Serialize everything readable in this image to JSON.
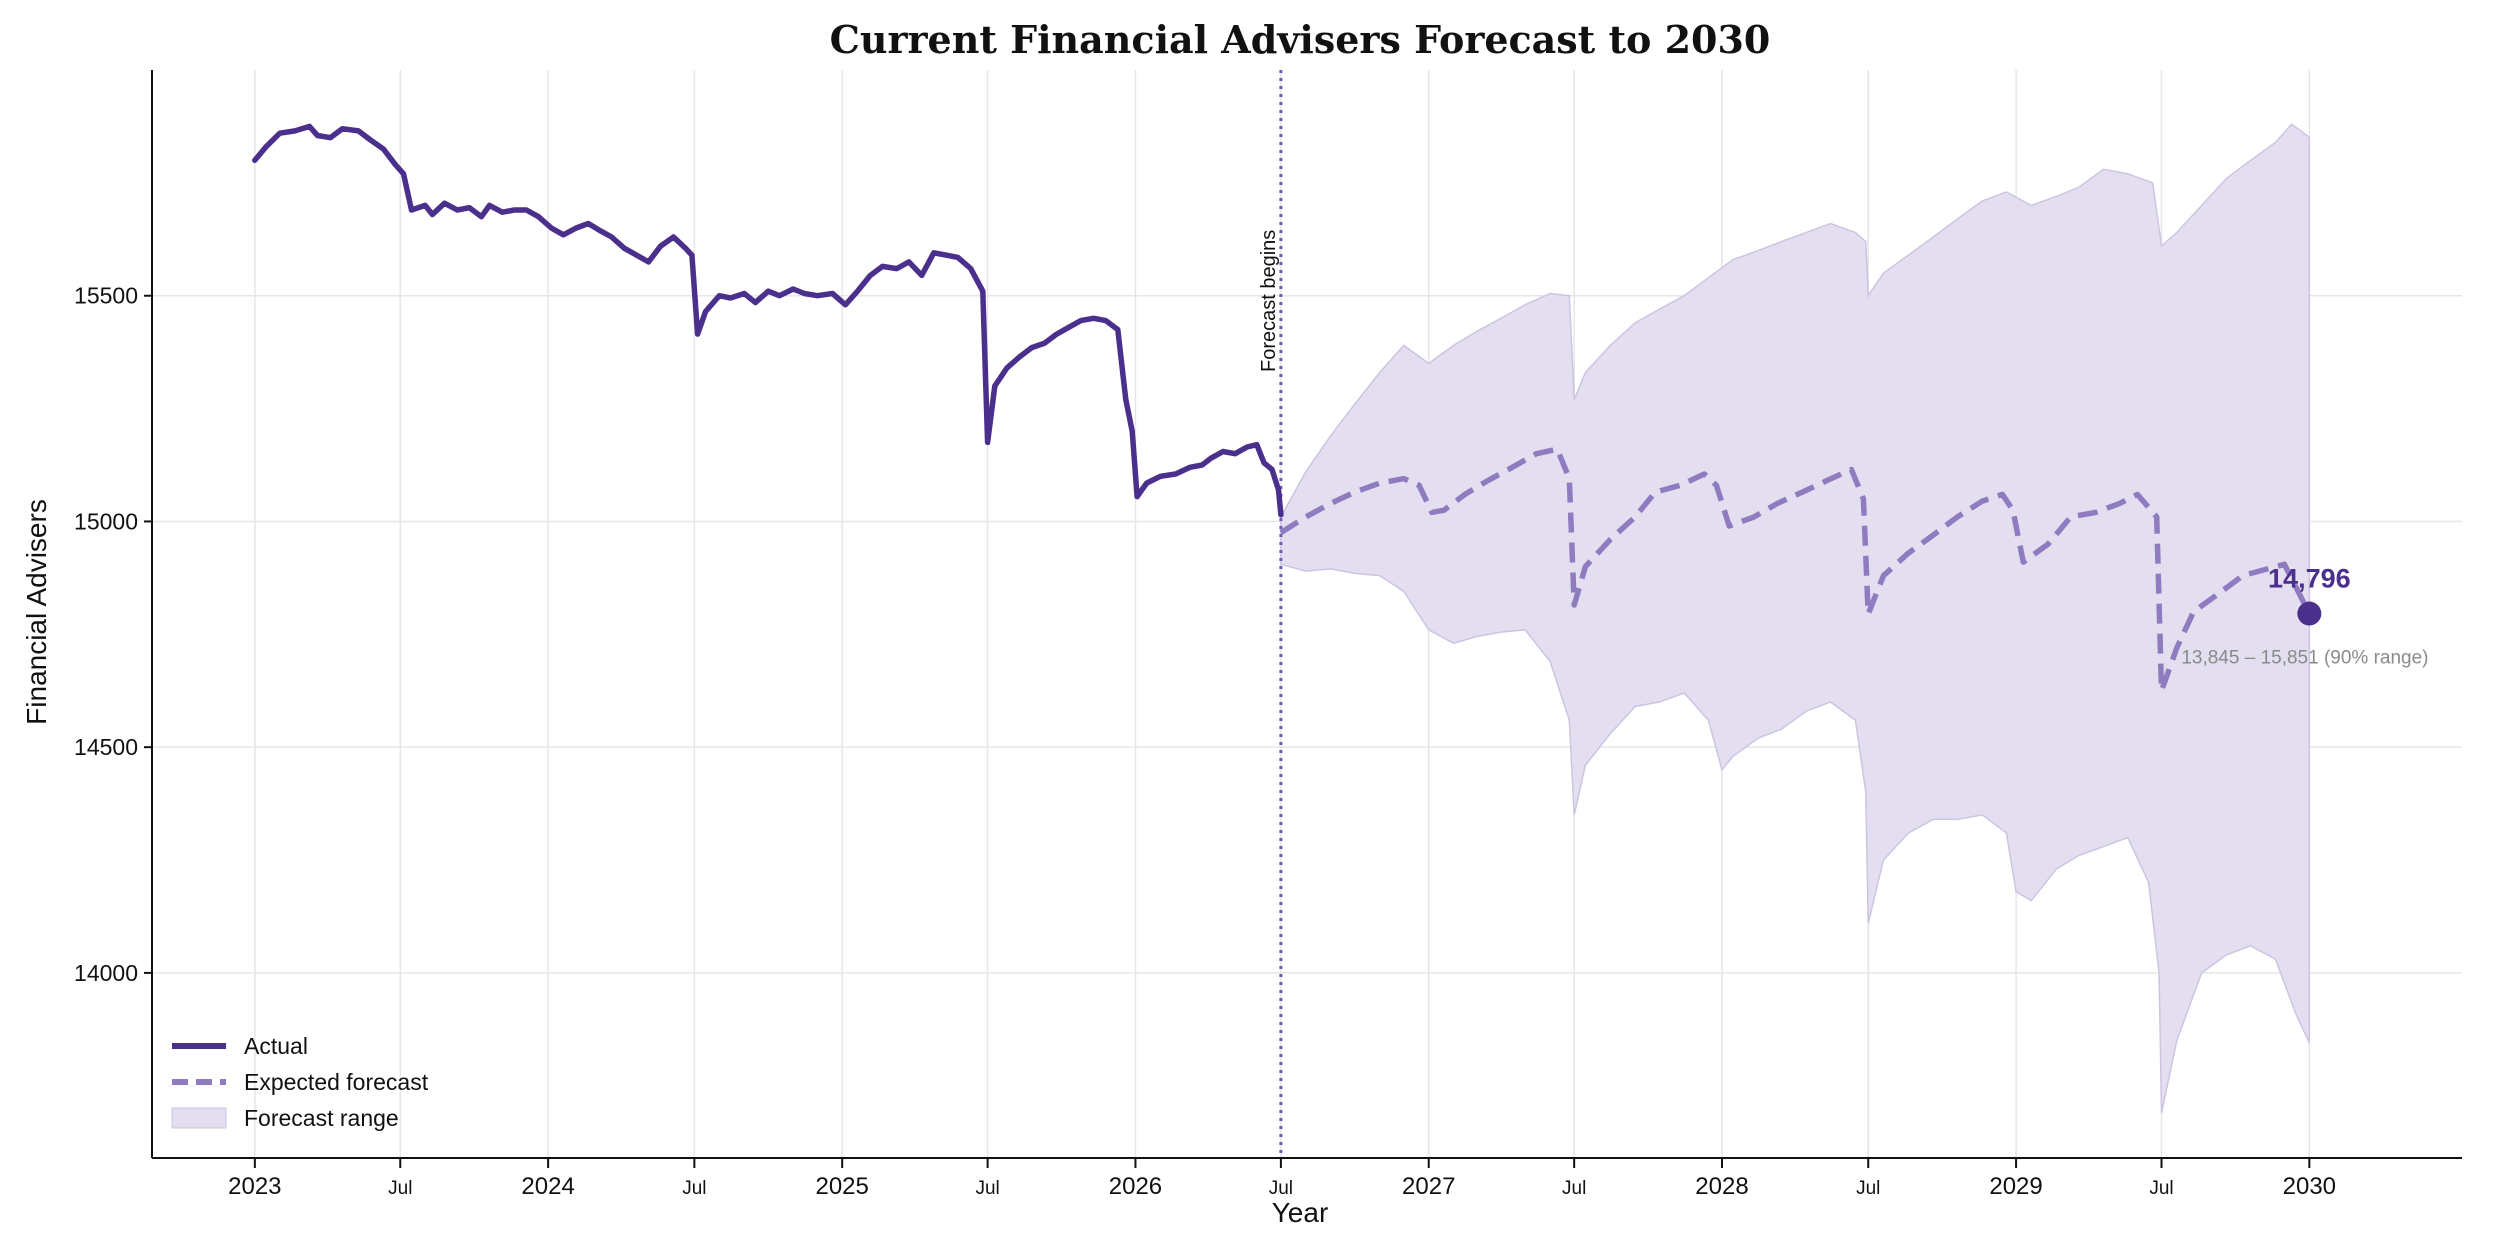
{
  "chart_data": {
    "type": "line",
    "title": "Current Financial Advisers Forecast to 2030",
    "xlabel": "Year",
    "ylabel": "Financial Advisers",
    "xlim": [
      "2022-08-26",
      "2030-07-10"
    ],
    "ylim": [
      13590,
      16000
    ],
    "y_ticks": [
      14000,
      14500,
      15000,
      15500
    ],
    "x_ticks": [
      {
        "date": "2023-01-01",
        "label": "2023",
        "major": true
      },
      {
        "date": "2023-07-01",
        "label": "Jul",
        "major": false
      },
      {
        "date": "2024-01-01",
        "label": "2024",
        "major": true
      },
      {
        "date": "2024-07-01",
        "label": "Jul",
        "major": false
      },
      {
        "date": "2025-01-01",
        "label": "2025",
        "major": true
      },
      {
        "date": "2025-07-01",
        "label": "Jul",
        "major": false
      },
      {
        "date": "2026-01-01",
        "label": "2026",
        "major": true
      },
      {
        "date": "2026-07-01",
        "label": "Jul",
        "major": false
      },
      {
        "date": "2027-01-01",
        "label": "2027",
        "major": true
      },
      {
        "date": "2027-07-01",
        "label": "Jul",
        "major": false
      },
      {
        "date": "2028-01-01",
        "label": "2028",
        "major": true
      },
      {
        "date": "2028-07-01",
        "label": "Jul",
        "major": false
      },
      {
        "date": "2029-01-01",
        "label": "2029",
        "major": true
      },
      {
        "date": "2029-07-01",
        "label": "Jul",
        "major": false
      },
      {
        "date": "2030-01-01",
        "label": "2030",
        "major": true
      }
    ],
    "grid": true,
    "legend_position": "bottom-left",
    "colors": {
      "actual": "#4b2f8c",
      "forecast": "#8f7bbf",
      "range_fill": "#e4dff0",
      "range_edge": "#cdc4e2",
      "annotation_muted": "#8a8a8a"
    },
    "series": [
      {
        "name": "Actual",
        "style": "solid",
        "points": [
          [
            "2023-01-01",
            15800
          ],
          [
            "2023-01-15",
            15830
          ],
          [
            "2023-02-01",
            15860
          ],
          [
            "2023-02-20",
            15865
          ],
          [
            "2023-03-10",
            15875
          ],
          [
            "2023-03-20",
            15855
          ],
          [
            "2023-04-05",
            15850
          ],
          [
            "2023-04-20",
            15870
          ],
          [
            "2023-05-10",
            15865
          ],
          [
            "2023-05-25",
            15845
          ],
          [
            "2023-06-10",
            15825
          ],
          [
            "2023-06-25",
            15790
          ],
          [
            "2023-07-05",
            15770
          ],
          [
            "2023-07-15",
            15690
          ],
          [
            "2023-08-01",
            15700
          ],
          [
            "2023-08-10",
            15680
          ],
          [
            "2023-08-25",
            15705
          ],
          [
            "2023-09-10",
            15690
          ],
          [
            "2023-09-25",
            15695
          ],
          [
            "2023-10-10",
            15675
          ],
          [
            "2023-10-20",
            15700
          ],
          [
            "2023-11-05",
            15685
          ],
          [
            "2023-11-20",
            15690
          ],
          [
            "2023-12-05",
            15690
          ],
          [
            "2023-12-20",
            15675
          ],
          [
            "2024-01-05",
            15650
          ],
          [
            "2024-01-20",
            15635
          ],
          [
            "2024-02-05",
            15650
          ],
          [
            "2024-02-20",
            15660
          ],
          [
            "2024-03-05",
            15645
          ],
          [
            "2024-03-20",
            15630
          ],
          [
            "2024-04-05",
            15605
          ],
          [
            "2024-04-20",
            15590
          ],
          [
            "2024-05-05",
            15575
          ],
          [
            "2024-05-20",
            15610
          ],
          [
            "2024-06-05",
            15630
          ],
          [
            "2024-06-20",
            15605
          ],
          [
            "2024-06-28",
            15590
          ],
          [
            "2024-07-05",
            15415
          ],
          [
            "2024-07-15",
            15465
          ],
          [
            "2024-08-01",
            15500
          ],
          [
            "2024-08-15",
            15495
          ],
          [
            "2024-09-01",
            15505
          ],
          [
            "2024-09-15",
            15485
          ],
          [
            "2024-10-01",
            15510
          ],
          [
            "2024-10-15",
            15500
          ],
          [
            "2024-11-01",
            15515
          ],
          [
            "2024-11-15",
            15505
          ],
          [
            "2024-12-01",
            15500
          ],
          [
            "2024-12-20",
            15505
          ],
          [
            "2025-01-05",
            15480
          ],
          [
            "2025-01-20",
            15510
          ],
          [
            "2025-02-05",
            15545
          ],
          [
            "2025-02-20",
            15565
          ],
          [
            "2025-03-10",
            15560
          ],
          [
            "2025-03-25",
            15575
          ],
          [
            "2025-04-10",
            15545
          ],
          [
            "2025-04-25",
            15595
          ],
          [
            "2025-05-10",
            15590
          ],
          [
            "2025-05-25",
            15585
          ],
          [
            "2025-06-10",
            15560
          ],
          [
            "2025-06-25",
            15510
          ],
          [
            "2025-07-01",
            15175
          ],
          [
            "2025-07-10",
            15300
          ],
          [
            "2025-07-25",
            15340
          ],
          [
            "2025-08-10",
            15365
          ],
          [
            "2025-08-25",
            15385
          ],
          [
            "2025-09-10",
            15395
          ],
          [
            "2025-09-25",
            15415
          ],
          [
            "2025-10-10",
            15430
          ],
          [
            "2025-10-25",
            15445
          ],
          [
            "2025-11-10",
            15450
          ],
          [
            "2025-11-25",
            15445
          ],
          [
            "2025-12-10",
            15425
          ],
          [
            "2025-12-20",
            15270
          ],
          [
            "2025-12-28",
            15200
          ],
          [
            "2026-01-03",
            15055
          ],
          [
            "2026-01-15",
            15085
          ],
          [
            "2026-02-01",
            15100
          ],
          [
            "2026-02-20",
            15105
          ],
          [
            "2026-03-10",
            15120
          ],
          [
            "2026-03-25",
            15125
          ],
          [
            "2026-04-05",
            15140
          ],
          [
            "2026-04-20",
            15155
          ],
          [
            "2026-05-05",
            15150
          ],
          [
            "2026-05-20",
            15165
          ],
          [
            "2026-06-01",
            15170
          ],
          [
            "2026-06-10",
            15130
          ],
          [
            "2026-06-20",
            15115
          ],
          [
            "2026-06-28",
            15070
          ],
          [
            "2026-07-01",
            15015
          ]
        ]
      },
      {
        "name": "Expected forecast",
        "style": "dashed",
        "points": [
          [
            "2026-07-01",
            14975
          ],
          [
            "2026-08-01",
            15010
          ],
          [
            "2026-09-01",
            15040
          ],
          [
            "2026-10-01",
            15065
          ],
          [
            "2026-11-01",
            15085
          ],
          [
            "2026-12-01",
            15095
          ],
          [
            "2026-12-20",
            15080
          ],
          [
            "2027-01-05",
            15020
          ],
          [
            "2027-01-20",
            15025
          ],
          [
            "2027-02-15",
            15060
          ],
          [
            "2027-03-15",
            15090
          ],
          [
            "2027-04-15",
            15120
          ],
          [
            "2027-05-15",
            15150
          ],
          [
            "2027-06-10",
            15160
          ],
          [
            "2027-06-25",
            15095
          ],
          [
            "2027-07-01",
            14815
          ],
          [
            "2027-07-15",
            14900
          ],
          [
            "2027-08-15",
            14960
          ],
          [
            "2027-09-15",
            15010
          ],
          [
            "2027-10-10",
            15065
          ],
          [
            "2027-11-10",
            15080
          ],
          [
            "2027-12-10",
            15105
          ],
          [
            "2027-12-25",
            15080
          ],
          [
            "2028-01-10",
            14990
          ],
          [
            "2028-02-10",
            15010
          ],
          [
            "2028-03-10",
            15040
          ],
          [
            "2028-04-10",
            15065
          ],
          [
            "2028-05-10",
            15090
          ],
          [
            "2028-06-10",
            15115
          ],
          [
            "2028-06-25",
            15050
          ],
          [
            "2028-07-01",
            14795
          ],
          [
            "2028-07-20",
            14880
          ],
          [
            "2028-08-20",
            14930
          ],
          [
            "2028-09-20",
            14970
          ],
          [
            "2028-10-20",
            15010
          ],
          [
            "2028-11-20",
            15045
          ],
          [
            "2028-12-15",
            15060
          ],
          [
            "2028-12-28",
            15025
          ],
          [
            "2029-01-10",
            14910
          ],
          [
            "2029-02-10",
            14950
          ],
          [
            "2029-03-10",
            15010
          ],
          [
            "2029-04-10",
            15020
          ],
          [
            "2029-05-10",
            15040
          ],
          [
            "2029-06-01",
            15060
          ],
          [
            "2029-06-25",
            15010
          ],
          [
            "2029-07-01",
            14625
          ],
          [
            "2029-07-20",
            14720
          ],
          [
            "2029-08-10",
            14800
          ],
          [
            "2029-09-10",
            14840
          ],
          [
            "2029-10-10",
            14880
          ],
          [
            "2029-11-10",
            14895
          ],
          [
            "2029-12-01",
            14905
          ],
          [
            "2030-01-01",
            14796
          ]
        ]
      }
    ],
    "band": {
      "name": "Forecast range",
      "upper": [
        [
          "2026-07-01",
          15010
        ],
        [
          "2026-08-01",
          15110
        ],
        [
          "2026-09-01",
          15190
        ],
        [
          "2026-10-01",
          15260
        ],
        [
          "2026-11-01",
          15330
        ],
        [
          "2026-12-01",
          15390
        ],
        [
          "2027-01-01",
          15350
        ],
        [
          "2027-02-01",
          15390
        ],
        [
          "2027-03-01",
          15420
        ],
        [
          "2027-04-01",
          15450
        ],
        [
          "2027-05-01",
          15480
        ],
        [
          "2027-06-01",
          15505
        ],
        [
          "2027-06-25",
          15500
        ],
        [
          "2027-07-01",
          15270
        ],
        [
          "2027-07-15",
          15330
        ],
        [
          "2027-08-15",
          15390
        ],
        [
          "2027-09-15",
          15440
        ],
        [
          "2027-10-15",
          15470
        ],
        [
          "2027-11-15",
          15500
        ],
        [
          "2027-12-15",
          15540
        ],
        [
          "2028-01-15",
          15580
        ],
        [
          "2028-02-15",
          15600
        ],
        [
          "2028-03-15",
          15620
        ],
        [
          "2028-04-15",
          15640
        ],
        [
          "2028-05-15",
          15660
        ],
        [
          "2028-06-15",
          15640
        ],
        [
          "2028-06-28",
          15620
        ],
        [
          "2028-07-01",
          15500
        ],
        [
          "2028-07-20",
          15550
        ],
        [
          "2028-08-20",
          15590
        ],
        [
          "2028-09-20",
          15630
        ],
        [
          "2028-10-20",
          15670
        ],
        [
          "2028-11-20",
          15710
        ],
        [
          "2028-12-20",
          15730
        ],
        [
          "2029-01-20",
          15700
        ],
        [
          "2029-02-20",
          15720
        ],
        [
          "2029-03-20",
          15740
        ],
        [
          "2029-04-20",
          15780
        ],
        [
          "2029-05-20",
          15770
        ],
        [
          "2029-06-20",
          15750
        ],
        [
          "2029-07-01",
          15610
        ],
        [
          "2029-07-20",
          15640
        ],
        [
          "2029-08-20",
          15700
        ],
        [
          "2029-09-20",
          15760
        ],
        [
          "2029-10-20",
          15800
        ],
        [
          "2029-11-20",
          15840
        ],
        [
          "2029-12-10",
          15880
        ],
        [
          "2030-01-01",
          15851
        ]
      ],
      "lower": [
        [
          "2026-07-01",
          14905
        ],
        [
          "2026-08-01",
          14890
        ],
        [
          "2026-09-01",
          14895
        ],
        [
          "2026-10-01",
          14885
        ],
        [
          "2026-11-01",
          14880
        ],
        [
          "2026-12-01",
          14845
        ],
        [
          "2027-01-01",
          14760
        ],
        [
          "2027-02-01",
          14730
        ],
        [
          "2027-03-01",
          14745
        ],
        [
          "2027-04-01",
          14755
        ],
        [
          "2027-05-01",
          14760
        ],
        [
          "2027-06-01",
          14690
        ],
        [
          "2027-06-25",
          14560
        ],
        [
          "2027-07-01",
          14350
        ],
        [
          "2027-07-15",
          14460
        ],
        [
          "2027-08-15",
          14530
        ],
        [
          "2027-09-15",
          14590
        ],
        [
          "2027-10-15",
          14600
        ],
        [
          "2027-11-15",
          14620
        ],
        [
          "2027-12-15",
          14560
        ],
        [
          "2028-01-01",
          14450
        ],
        [
          "2028-01-15",
          14480
        ],
        [
          "2028-02-15",
          14520
        ],
        [
          "2028-03-15",
          14540
        ],
        [
          "2028-04-15",
          14580
        ],
        [
          "2028-05-15",
          14600
        ],
        [
          "2028-06-15",
          14560
        ],
        [
          "2028-06-28",
          14400
        ],
        [
          "2028-07-01",
          14110
        ],
        [
          "2028-07-20",
          14250
        ],
        [
          "2028-08-20",
          14310
        ],
        [
          "2028-09-20",
          14340
        ],
        [
          "2028-10-20",
          14340
        ],
        [
          "2028-11-20",
          14350
        ],
        [
          "2028-12-20",
          14310
        ],
        [
          "2029-01-01",
          14180
        ],
        [
          "2029-01-20",
          14160
        ],
        [
          "2029-02-20",
          14230
        ],
        [
          "2029-03-20",
          14260
        ],
        [
          "2029-04-20",
          14280
        ],
        [
          "2029-05-20",
          14300
        ],
        [
          "2029-06-15",
          14200
        ],
        [
          "2029-06-28",
          14000
        ],
        [
          "2029-07-01",
          13690
        ],
        [
          "2029-07-20",
          13850
        ],
        [
          "2029-08-20",
          14000
        ],
        [
          "2029-09-20",
          14040
        ],
        [
          "2029-10-20",
          14060
        ],
        [
          "2029-11-20",
          14030
        ],
        [
          "2029-12-15",
          13910
        ],
        [
          "2030-01-01",
          13845
        ]
      ]
    },
    "forecast_start": {
      "date": "2026-07-01",
      "label": "Forecast begins"
    },
    "endpoint": {
      "date": "2030-01-01",
      "value": 14796,
      "label": "14,796",
      "range_label": "13,845 – 15,851 (90% range)"
    },
    "legend": {
      "actual_label": "Actual",
      "forecast_label": "Expected forecast",
      "range_label": "Forecast range"
    }
  }
}
